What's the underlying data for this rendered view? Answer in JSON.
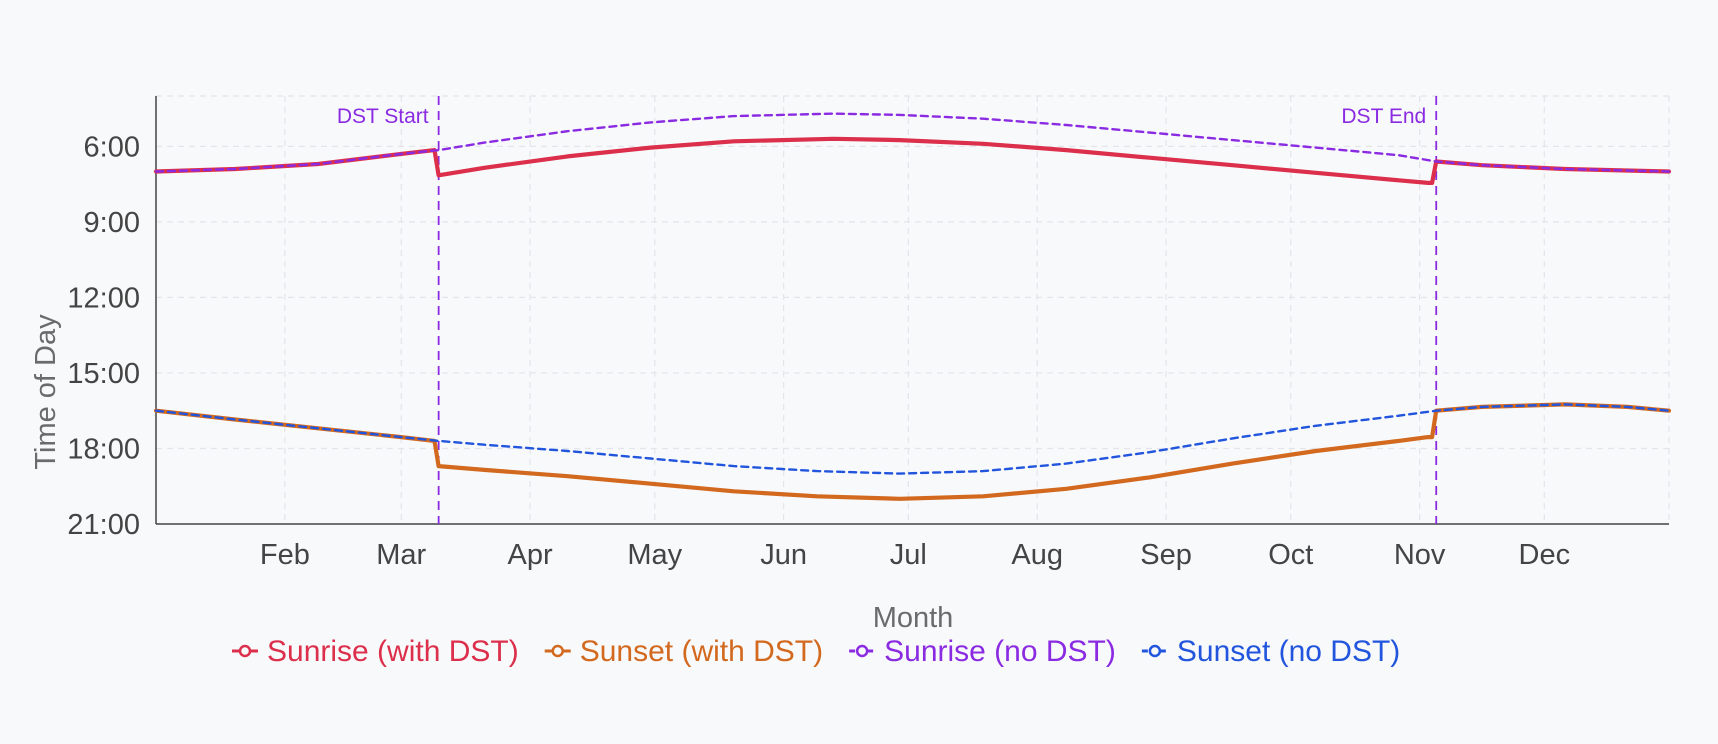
{
  "chart_data": {
    "type": "line",
    "xlabel": "Month",
    "ylabel": "Time of Day",
    "x_ticks": [
      {
        "label": "Feb",
        "day": 32
      },
      {
        "label": "Mar",
        "day": 60
      },
      {
        "label": "Apr",
        "day": 91
      },
      {
        "label": "May",
        "day": 121
      },
      {
        "label": "Jun",
        "day": 152
      },
      {
        "label": "Jul",
        "day": 182
      },
      {
        "label": "Aug",
        "day": 213
      },
      {
        "label": "Sep",
        "day": 244
      },
      {
        "label": "Oct",
        "day": 274
      },
      {
        "label": "Nov",
        "day": 305
      },
      {
        "label": "Dec",
        "day": 335
      }
    ],
    "xlim": [
      1,
      365
    ],
    "y_ticks": [
      {
        "label": "6:00",
        "hour": 6
      },
      {
        "label": "9:00",
        "hour": 9
      },
      {
        "label": "12:00",
        "hour": 12
      },
      {
        "label": "15:00",
        "hour": 15
      },
      {
        "label": "18:00",
        "hour": 18
      },
      {
        "label": "21:00",
        "hour": 21
      }
    ],
    "ylim": [
      4,
      21
    ],
    "y_reversed": true,
    "grid": true,
    "legend_position": "bottom-center",
    "annotations": [
      {
        "label": "DST Start",
        "day": 69,
        "color": "#8a2be2"
      },
      {
        "label": "DST End",
        "day": 309,
        "color": "#8a2be2"
      }
    ],
    "series": [
      {
        "name": "Sunrise (with DST)",
        "color": "#dc2f4c",
        "dash": "solid",
        "x": [
          1,
          20,
          40,
          60,
          68,
          69,
          80,
          100,
          120,
          140,
          164,
          180,
          200,
          220,
          240,
          260,
          280,
          300,
          307,
          308,
          309,
          320,
          340,
          365
        ],
        "y": [
          7.0,
          6.9,
          6.7,
          6.3,
          6.15,
          7.15,
          6.85,
          6.4,
          6.05,
          5.8,
          5.7,
          5.75,
          5.9,
          6.15,
          6.45,
          6.75,
          7.05,
          7.35,
          7.45,
          7.45,
          6.6,
          6.75,
          6.9,
          7.0
        ]
      },
      {
        "name": "Sunset (with DST)",
        "color": "#d2691e",
        "dash": "solid",
        "x": [
          1,
          20,
          40,
          60,
          68,
          69,
          80,
          100,
          120,
          140,
          160,
          180,
          200,
          220,
          240,
          260,
          280,
          300,
          307,
          308,
          309,
          320,
          340,
          355,
          365
        ],
        "y": [
          16.5,
          16.85,
          17.2,
          17.55,
          17.7,
          18.7,
          18.85,
          19.1,
          19.4,
          19.7,
          19.9,
          20.0,
          19.9,
          19.6,
          19.15,
          18.6,
          18.1,
          17.7,
          17.55,
          17.55,
          16.5,
          16.35,
          16.25,
          16.35,
          16.5
        ]
      },
      {
        "name": "Sunrise (no DST)",
        "color": "#8a2be2",
        "dash": "dashed",
        "x": [
          1,
          20,
          40,
          60,
          69,
          80,
          100,
          120,
          140,
          164,
          180,
          200,
          220,
          240,
          260,
          280,
          300,
          309,
          320,
          340,
          365
        ],
        "y": [
          7.0,
          6.9,
          6.7,
          6.3,
          6.15,
          5.85,
          5.4,
          5.05,
          4.8,
          4.7,
          4.75,
          4.9,
          5.15,
          5.45,
          5.75,
          6.05,
          6.35,
          6.6,
          6.75,
          6.9,
          7.0
        ]
      },
      {
        "name": "Sunset (no DST)",
        "color": "#2255dd",
        "dash": "dashed",
        "x": [
          1,
          20,
          40,
          60,
          69,
          80,
          100,
          120,
          140,
          160,
          180,
          200,
          220,
          240,
          260,
          280,
          300,
          309,
          320,
          340,
          355,
          365
        ],
        "y": [
          16.5,
          16.85,
          17.2,
          17.55,
          17.7,
          17.85,
          18.1,
          18.4,
          18.7,
          18.9,
          19.0,
          18.9,
          18.6,
          18.15,
          17.6,
          17.1,
          16.7,
          16.5,
          16.35,
          16.25,
          16.35,
          16.5
        ]
      }
    ]
  }
}
